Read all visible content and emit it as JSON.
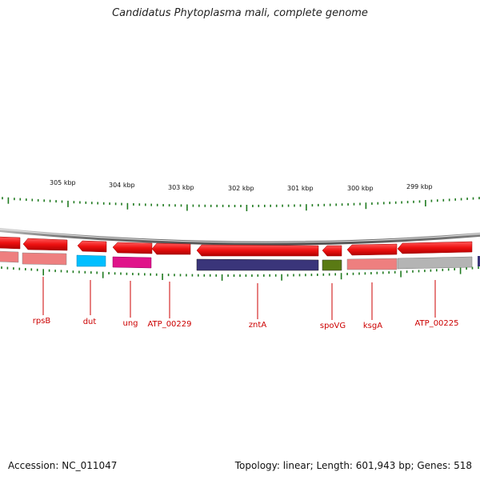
{
  "title": "Candidatus Phytoplasma mali, complete genome",
  "scale_labels": [
    "305 kbp",
    "304 kbp",
    "303 kbp",
    "302 kbp",
    "301 kbp",
    "300 kbp",
    "299 kbp"
  ],
  "gene_labels": [
    "rpsB",
    "dut",
    "ung",
    "ATP_00229",
    "zntA",
    "spoVG",
    "ksgA",
    "ATP_00225"
  ],
  "colors": {
    "cds": "#ee1111",
    "tick": "#1f7a1f",
    "label": "#cc0000",
    "backbone": "#8a8a8a",
    "cog_blue": "#00bfff",
    "cog_magenta": "#e0148a",
    "cog_purple": "#3a357a",
    "cog_olive": "#5a7a14",
    "cog_pink": "#ee7f7f",
    "cog_gray": "#b4b4b4"
  },
  "footer": {
    "accession": "Accession: NC_011047",
    "stats": "Topology: linear; Length: 601,943 bp; Genes: 518"
  }
}
